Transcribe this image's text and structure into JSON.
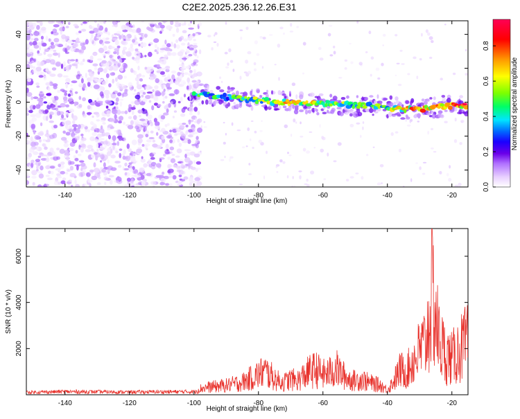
{
  "title": "C2E2.2025.236.12.26.E31",
  "chart_data": [
    {
      "type": "heatmap",
      "title": "C2E2.2025.236.12.26.E31",
      "xlabel": "Height of straight line (km)",
      "ylabel": "Frequency (Hz)",
      "xlim": [
        -152,
        -15
      ],
      "ylim": [
        -50,
        48
      ],
      "xticks": [
        -140,
        -120,
        -100,
        -80,
        -60,
        -40,
        -20
      ],
      "xtick_labels": [
        "-140",
        "-120",
        "-100",
        "-80",
        "-60",
        "-40",
        "-20"
      ],
      "yticks": [
        -40,
        -20,
        0,
        20,
        40
      ],
      "ytick_labels": [
        "-40",
        "-20",
        "0",
        "20",
        "40"
      ],
      "colorbar": {
        "label": "Normalized spectral amplitude",
        "range": [
          0,
          0.95
        ],
        "ticks": [
          0.0,
          0.2,
          0.4,
          0.6,
          0.8
        ],
        "tick_labels": [
          "0.0",
          "0.2",
          "0.4",
          "0.6",
          "0.8"
        ],
        "colormap": [
          "#ffffff",
          "#e8d0ff",
          "#b070ff",
          "#6a00e8",
          "#1a00ff",
          "#0066ff",
          "#00e5ff",
          "#00ff66",
          "#7cff00",
          "#ffff00",
          "#ff9900",
          "#ff0000",
          "#ff0055"
        ]
      },
      "noise_region_km": [
        -152,
        -98
      ],
      "signal_start_km": -100,
      "ridge": [
        {
          "x": -100,
          "freq": 5,
          "amp": 0.45
        },
        {
          "x": -95,
          "freq": 4,
          "amp": 0.5
        },
        {
          "x": -90,
          "freq": 3,
          "amp": 0.45
        },
        {
          "x": -85,
          "freq": 2,
          "amp": 0.5
        },
        {
          "x": -80,
          "freq": 1,
          "amp": 0.55
        },
        {
          "x": -75,
          "freq": 0,
          "amp": 0.6
        },
        {
          "x": -70,
          "freq": 0,
          "amp": 0.7
        },
        {
          "x": -65,
          "freq": -1,
          "amp": 0.65
        },
        {
          "x": -60,
          "freq": -1,
          "amp": 0.6
        },
        {
          "x": -55,
          "freq": -1,
          "amp": 0.55
        },
        {
          "x": -50,
          "freq": -2,
          "amp": 0.5
        },
        {
          "x": -45,
          "freq": -2,
          "amp": 0.5
        },
        {
          "x": -40,
          "freq": -3,
          "amp": 0.55
        },
        {
          "x": -35,
          "freq": -4,
          "amp": 0.7
        },
        {
          "x": -30,
          "freq": -4,
          "amp": 0.8
        },
        {
          "x": -25,
          "freq": -3,
          "amp": 0.8
        },
        {
          "x": -20,
          "freq": -2,
          "amp": 0.9
        },
        {
          "x": -16,
          "freq": -2,
          "amp": 0.85
        }
      ]
    },
    {
      "type": "line",
      "xlabel": "Height of straight line (km)",
      "ylabel": "SNR (10 * v/v)",
      "xlim": [
        -152,
        -15
      ],
      "ylim": [
        0,
        7200
      ],
      "xticks": [
        -140,
        -120,
        -100,
        -80,
        -60,
        -40,
        -20
      ],
      "xtick_labels": [
        "-140",
        "-120",
        "-100",
        "-80",
        "-60",
        "-40",
        "-20"
      ],
      "yticks": [
        2000,
        4000,
        6000
      ],
      "ytick_labels": [
        "2000",
        "4000",
        "6000"
      ],
      "color": "#e8322c",
      "series": [
        {
          "name": "SNR",
          "x": [
            -152,
            -140,
            -130,
            -120,
            -110,
            -100,
            -98,
            -95,
            -90,
            -85,
            -82,
            -80,
            -78,
            -76,
            -74,
            -72,
            -70,
            -68,
            -66,
            -64,
            -62,
            -60,
            -58,
            -56,
            -54,
            -52,
            -50,
            -48,
            -46,
            -44,
            -42,
            -40,
            -38,
            -36,
            -34,
            -32,
            -30,
            -28,
            -26,
            -24,
            -22,
            -20,
            -18,
            -16,
            -15
          ],
          "y": [
            120,
            150,
            140,
            130,
            140,
            150,
            400,
            500,
            600,
            800,
            1100,
            1300,
            1500,
            1200,
            900,
            800,
            1000,
            900,
            1200,
            1500,
            1600,
            1300,
            1400,
            1700,
            1300,
            1000,
            900,
            1000,
            800,
            700,
            600,
            300,
            900,
            1600,
            1500,
            2200,
            2800,
            3400,
            6500,
            3500,
            2600,
            2300,
            2800,
            3200,
            3300
          ]
        }
      ]
    }
  ]
}
